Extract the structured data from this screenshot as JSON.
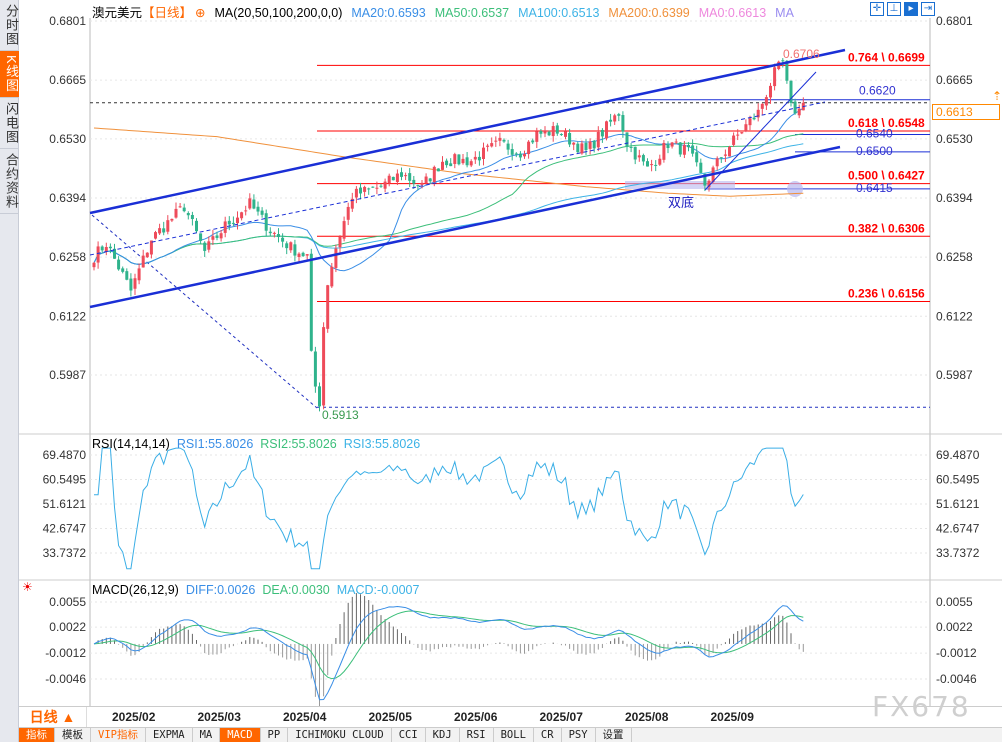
{
  "sidebar": {
    "tabs": [
      {
        "label": "分时图"
      },
      {
        "label": "K线图",
        "active": true
      },
      {
        "label": "闪电图"
      },
      {
        "label": "合约资料"
      }
    ]
  },
  "header": {
    "symbol": "澳元美元",
    "period": "【日线】",
    "ma_label": "MA(20,50,100,200,0,0)",
    "ma20": "MA20:0.6593",
    "ma50": "MA50:0.6537",
    "ma100": "MA100:0.6513",
    "ma200": "MA200:0.6399",
    "ma0": "MA0:0.6613",
    "ma": "MA"
  },
  "colors": {
    "up": "#ee4b5a",
    "down": "#2fb38c",
    "ma20": "#3a8ee6",
    "ma50": "#3cbf7a",
    "ma100": "#3db3e6",
    "ma200": "#f0913c",
    "fib": "#ff0000",
    "channel": "#1a2fd6",
    "accent": "#ff6600"
  },
  "tool_icons": [
    "crosshair-icon",
    "range-icon",
    "cursor-icon",
    "exit-icon"
  ],
  "current_price": "0.6613",
  "chart_data": [
    {
      "type": "candlestick",
      "title": "澳元美元【日线】",
      "y_ticks": [
        "0.6801",
        "0.6665",
        "0.6530",
        "0.6394",
        "0.6258",
        "0.6122",
        "0.5987"
      ],
      "ylim": [
        0.5987,
        0.6801
      ],
      "x_ticks": [
        "2025/02",
        "2025/03",
        "2025/04",
        "2025/05",
        "2025/06",
        "2025/07",
        "2025/08",
        "2025/09"
      ],
      "close_path": [
        [
          0,
          0.626
        ],
        [
          3,
          0.629
        ],
        [
          9,
          0.618
        ],
        [
          14,
          0.63
        ],
        [
          22,
          0.6375
        ],
        [
          27,
          0.627
        ],
        [
          32,
          0.633
        ],
        [
          38,
          0.638
        ],
        [
          43,
          0.632
        ],
        [
          48,
          0.628
        ],
        [
          52,
          0.626
        ],
        [
          53,
          0.603
        ],
        [
          54,
          0.596
        ],
        [
          55,
          0.5925
        ],
        [
          56,
          0.61
        ],
        [
          57,
          0.62
        ],
        [
          59,
          0.628
        ],
        [
          63,
          0.64
        ],
        [
          70,
          0.642
        ],
        [
          75,
          0.645
        ],
        [
          80,
          0.642
        ],
        [
          85,
          0.648
        ],
        [
          92,
          0.648
        ],
        [
          99,
          0.652
        ],
        [
          104,
          0.65
        ],
        [
          108,
          0.654
        ],
        [
          113,
          0.655
        ],
        [
          120,
          0.65
        ],
        [
          128,
          0.659
        ],
        [
          130,
          0.652
        ],
        [
          135,
          0.646
        ],
        [
          140,
          0.652
        ],
        [
          145,
          0.65
        ],
        [
          149,
          0.6425
        ],
        [
          153,
          0.649
        ],
        [
          158,
          0.655
        ],
        [
          162,
          0.659
        ],
        [
          166,
          0.668
        ],
        [
          168,
          0.6705
        ],
        [
          170,
          0.66
        ],
        [
          172,
          0.6595
        ],
        [
          173,
          0.6613
        ]
      ],
      "ma200_path": [
        [
          0,
          0.6555
        ],
        [
          30,
          0.6535
        ],
        [
          60,
          0.649
        ],
        [
          90,
          0.645
        ],
        [
          120,
          0.642
        ],
        [
          140,
          0.6405
        ],
        [
          155,
          0.6398
        ],
        [
          173,
          0.6405
        ]
      ],
      "fib_levels": [
        {
          "label": "0.764 \\ 0.6699",
          "value": 0.6699
        },
        {
          "label": "0.618 \\ 0.6548",
          "value": 0.6548
        },
        {
          "label": "0.500 \\ 0.6427",
          "value": 0.6427
        },
        {
          "label": "0.382 \\ 0.6306",
          "value": 0.6306
        },
        {
          "label": "0.236 \\ 0.6156",
          "value": 0.6156
        }
      ],
      "levels": [
        {
          "label": "0.6620",
          "value": 0.662
        },
        {
          "label": "0.6540",
          "value": 0.654
        },
        {
          "label": "0.6500",
          "value": 0.65
        },
        {
          "label": "0.6415",
          "value": 0.6415
        }
      ],
      "annotations": {
        "high": "0.6706",
        "low": "0.5913",
        "pattern": "双底"
      }
    },
    {
      "type": "line",
      "title": "RSI(14,14,14)",
      "rsi1": "RSI1:55.8026",
      "rsi2": "RSI2:55.8026",
      "rsi3": "RSI3:55.8026",
      "y_ticks": [
        "69.4870",
        "60.5495",
        "51.6121",
        "42.6747",
        "33.7372"
      ]
    },
    {
      "type": "line",
      "title": "MACD(26,12,9)",
      "diff": "DIFF:0.0026",
      "dea": "DEA:0.0030",
      "macd": "MACD:-0.0007",
      "y_ticks": [
        "0.0055",
        "0.0022",
        "-0.0012",
        "-0.0046"
      ]
    }
  ],
  "datebar": {
    "period": "日线 ▲"
  },
  "toolbar": [
    "指标",
    "模板",
    "VIP指标",
    "EXPMA",
    "MA",
    "MACD",
    "PP",
    "ICHIMOKU CLOUD",
    "CCI",
    "KDJ",
    "RSI",
    "BOLL",
    "CR",
    "PSY",
    "设置"
  ],
  "watermark": "FX678"
}
